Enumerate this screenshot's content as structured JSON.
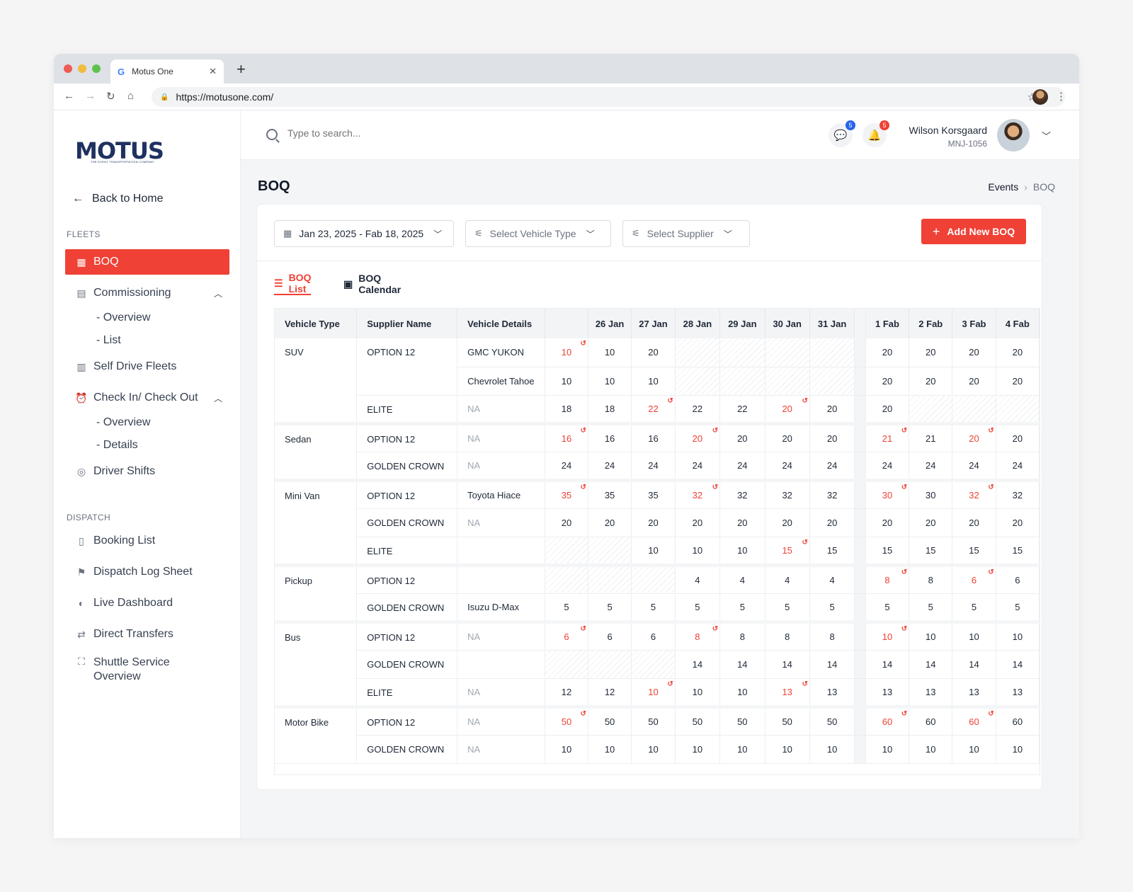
{
  "browser": {
    "tab_title": "Motus One",
    "url": "https://motusone.com/"
  },
  "sidebar": {
    "logo": "MOTUS",
    "logo_tagline": "THE EVENT TRANSPORTATION COMPANY",
    "back_home": "Back to Home",
    "fleets_label": "FLEETS",
    "dispatch_label": "DISPATCH",
    "items": {
      "boq": "BOQ",
      "commissioning": "Commissioning",
      "commissioning_overview": "- Overview",
      "commissioning_list": "- List",
      "self_drive": "Self Drive Fleets",
      "checkin": "Check In/ Check Out",
      "checkin_overview": "- Overview",
      "checkin_details": "- Details",
      "driver_shifts": "Driver Shifts",
      "booking_list": "Booking List",
      "dispatch_log": "Dispatch Log Sheet",
      "live_dashboard": "Live Dashboard",
      "direct_transfers": "Direct Transfers",
      "shuttle_line1": "Shuttle Service",
      "shuttle_line2": "Overview"
    }
  },
  "topbar": {
    "search_placeholder": "Type to search...",
    "messages_badge": "5",
    "notifications_badge": "5",
    "user_name": "Wilson Korsgaard",
    "user_id": "MNJ-1056"
  },
  "page": {
    "title": "BOQ",
    "breadcrumb_parent": "Events",
    "breadcrumb_current": "BOQ"
  },
  "filters": {
    "date_range": "Jan 23, 2025 - Fab 18, 2025",
    "vehicle_type": "Select Vehicle Type",
    "supplier": "Select Supplier",
    "add_button": "Add New BOQ"
  },
  "tabs": {
    "list": "BOQ List",
    "calendar": "BOQ Calendar"
  },
  "table": {
    "headers": {
      "vehicle_type": "Vehicle Type",
      "supplier": "Supplier Name",
      "details": "Vehicle Details",
      "d0": "",
      "d1": "26 Jan",
      "d2": "27 Jan",
      "d3": "28 Jan",
      "d4": "29 Jan",
      "d5": "30 Jan",
      "d6": "31 Jan",
      "d7": "1 Fab",
      "d8": "2 Fab",
      "d9": "3 Fab",
      "d10": "4 Fab"
    },
    "rows": [
      {
        "type": "SUV",
        "supplier": "OPTION 12",
        "details": "GMC YUKON",
        "na": false,
        "vals": [
          "10*",
          "10",
          "20",
          "#",
          "#",
          "#",
          "#",
          "20",
          "20",
          "20",
          "20"
        ]
      },
      {
        "type": "",
        "supplier": "",
        "details": "Chevrolet Tahoe",
        "na": false,
        "vals": [
          "10",
          "10",
          "10",
          "#",
          "#",
          "#",
          "#",
          "20",
          "20",
          "20",
          "20"
        ]
      },
      {
        "type": "",
        "supplier": "ELITE",
        "details": "NA",
        "na": true,
        "vals": [
          "18",
          "18",
          "22*",
          "22",
          "22",
          "20*",
          "20",
          "20",
          "#",
          "#",
          "#"
        ]
      },
      {
        "type": "Sedan",
        "supplier": "OPTION 12",
        "details": "NA",
        "na": true,
        "vals": [
          "16*",
          "16",
          "16",
          "20*",
          "20",
          "20",
          "20",
          "21*",
          "21",
          "20*",
          "20"
        ]
      },
      {
        "type": "",
        "supplier": "GOLDEN CROWN",
        "details": "NA",
        "na": true,
        "vals": [
          "24",
          "24",
          "24",
          "24",
          "24",
          "24",
          "24",
          "24",
          "24",
          "24",
          "24"
        ]
      },
      {
        "type": "Mini Van",
        "supplier": "OPTION 12",
        "details": "Toyota Hiace",
        "na": false,
        "vals": [
          "35*",
          "35",
          "35",
          "32*",
          "32",
          "32",
          "32",
          "30*",
          "30",
          "32*",
          "32"
        ]
      },
      {
        "type": "",
        "supplier": "GOLDEN CROWN",
        "details": "NA",
        "na": true,
        "vals": [
          "20",
          "20",
          "20",
          "20",
          "20",
          "20",
          "20",
          "20",
          "20",
          "20",
          "20"
        ]
      },
      {
        "type": "",
        "supplier": "ELITE",
        "details": "",
        "na": false,
        "vals": [
          "#",
          "#",
          "10",
          "10",
          "10",
          "15*",
          "15",
          "15",
          "15",
          "15",
          "15"
        ]
      },
      {
        "type": "Pickup",
        "supplier": "OPTION 12",
        "details": "",
        "na": false,
        "vals": [
          "#",
          "#",
          "#",
          "4",
          "4",
          "4",
          "4",
          "8*",
          "8",
          "6*",
          "6"
        ]
      },
      {
        "type": "",
        "supplier": "GOLDEN CROWN",
        "details": "Isuzu D-Max",
        "na": false,
        "vals": [
          "5",
          "5",
          "5",
          "5",
          "5",
          "5",
          "5",
          "5",
          "5",
          "5",
          "5"
        ]
      },
      {
        "type": "Bus",
        "supplier": "OPTION 12",
        "details": "NA",
        "na": true,
        "vals": [
          "6*",
          "6",
          "6",
          "8*",
          "8",
          "8",
          "8",
          "10*",
          "10",
          "10",
          "10"
        ]
      },
      {
        "type": "",
        "supplier": "GOLDEN CROWN",
        "details": "",
        "na": false,
        "vals": [
          "#",
          "#",
          "#",
          "14",
          "14",
          "14",
          "14",
          "14",
          "14",
          "14",
          "14"
        ]
      },
      {
        "type": "",
        "supplier": "ELITE",
        "details": "NA",
        "na": true,
        "vals": [
          "12",
          "12",
          "10*",
          "10",
          "10",
          "13*",
          "13",
          "13",
          "13",
          "13",
          "13"
        ]
      },
      {
        "type": "Motor Bike",
        "supplier": "OPTION 12",
        "details": "NA",
        "na": true,
        "vals": [
          "50*",
          "50",
          "50",
          "50",
          "50",
          "50",
          "50",
          "60*",
          "60",
          "60*",
          "60"
        ]
      },
      {
        "type": "",
        "supplier": "GOLDEN CROWN",
        "details": "NA",
        "na": true,
        "vals": [
          "10",
          "10",
          "10",
          "10",
          "10",
          "10",
          "10",
          "10",
          "10",
          "10",
          "10"
        ]
      }
    ],
    "group_rowspans": [
      3,
      0,
      0,
      2,
      0,
      3,
      0,
      0,
      2,
      0,
      3,
      0,
      0,
      2,
      0
    ],
    "supplier_rowspans": [
      2,
      0,
      1,
      1,
      1,
      1,
      1,
      1,
      1,
      1,
      1,
      1,
      1,
      1,
      1
    ]
  },
  "colors": {
    "accent": "#ef4135",
    "brand_navy": "#1f3160"
  }
}
